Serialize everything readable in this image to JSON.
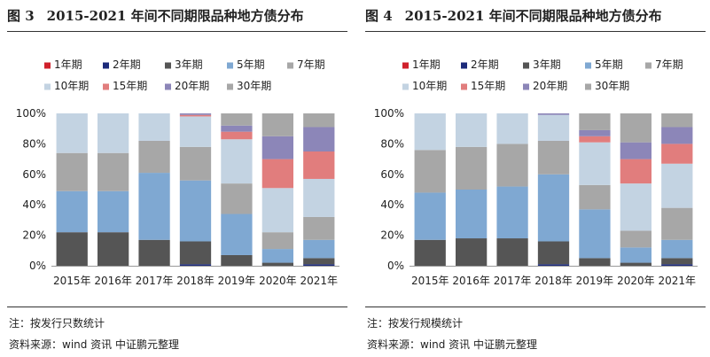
{
  "colors": {
    "1年期": "#d0202b",
    "2年期": "#1c2a7a",
    "3年期": "#555555",
    "5年期": "#7fa8d2",
    "7年期": "#a7a7a7",
    "10年期": "#c3d3e2",
    "15年期": "#e17d7d",
    "20年期": "#8c86b8",
    "30年期": "#a7a7a7"
  },
  "chart_data": [
    {
      "type": "bar",
      "stacked": true,
      "fig_num": "图 3",
      "title": "2015-2021 年间不同期限品种地方债分布",
      "note": "注：按发行只数统计",
      "source": "资料来源：wind 资讯   中证鹏元整理",
      "categories": [
        "2015年",
        "2016年",
        "2017年",
        "2018年",
        "2019年",
        "2020年",
        "2021年"
      ],
      "ylim": [
        0,
        100
      ],
      "yticks": [
        "0%",
        "20%",
        "40%",
        "60%",
        "80%",
        "100%"
      ],
      "legend_position": "top",
      "series": [
        {
          "name": "1年期",
          "values": [
            0,
            0,
            0,
            0,
            0,
            0,
            0
          ]
        },
        {
          "name": "2年期",
          "values": [
            0,
            0,
            0,
            1,
            0,
            0,
            1
          ]
        },
        {
          "name": "3年期",
          "values": [
            22,
            22,
            17,
            15,
            7,
            2,
            4
          ]
        },
        {
          "name": "5年期",
          "values": [
            27,
            27,
            44,
            40,
            27,
            9,
            12
          ]
        },
        {
          "name": "7年期",
          "values": [
            25,
            25,
            21,
            22,
            20,
            11,
            15
          ]
        },
        {
          "name": "10年期",
          "values": [
            26,
            26,
            18,
            20,
            29,
            29,
            25
          ]
        },
        {
          "name": "15年期",
          "values": [
            0,
            0,
            0,
            1,
            5,
            19,
            18
          ]
        },
        {
          "name": "20年期",
          "values": [
            0,
            0,
            0,
            1,
            4,
            15,
            16
          ]
        },
        {
          "name": "30年期",
          "values": [
            0,
            0,
            0,
            0,
            8,
            15,
            9
          ]
        }
      ]
    },
    {
      "type": "bar",
      "stacked": true,
      "fig_num": "图 4",
      "title": "2015-2021 年间不同期限品种地方债分布",
      "note": "注：按发行规模统计",
      "source": "资料来源：wind 资讯   中证鹏元整理",
      "categories": [
        "2015年",
        "2016年",
        "2017年",
        "2018年",
        "2019年",
        "2020年",
        "2021年"
      ],
      "ylim": [
        0,
        100
      ],
      "yticks": [
        "0%",
        "20%",
        "40%",
        "60%",
        "80%",
        "100%"
      ],
      "legend_position": "top",
      "series": [
        {
          "name": "1年期",
          "values": [
            0,
            0,
            0,
            0,
            0,
            0,
            0
          ]
        },
        {
          "name": "2年期",
          "values": [
            0,
            0,
            0,
            1,
            0,
            0,
            1
          ]
        },
        {
          "name": "3年期",
          "values": [
            17,
            18,
            18,
            15,
            5,
            2,
            4
          ]
        },
        {
          "name": "5年期",
          "values": [
            31,
            32,
            34,
            44,
            32,
            10,
            12
          ]
        },
        {
          "name": "7年期",
          "values": [
            28,
            28,
            28,
            22,
            16,
            11,
            21
          ]
        },
        {
          "name": "10年期",
          "values": [
            24,
            22,
            20,
            17,
            28,
            31,
            29
          ]
        },
        {
          "name": "15年期",
          "values": [
            0,
            0,
            0,
            0,
            4,
            16,
            13
          ]
        },
        {
          "name": "20年期",
          "values": [
            0,
            0,
            0,
            1,
            4,
            11,
            11
          ]
        },
        {
          "name": "30年期",
          "values": [
            0,
            0,
            0,
            0,
            11,
            19,
            9
          ]
        }
      ]
    }
  ]
}
